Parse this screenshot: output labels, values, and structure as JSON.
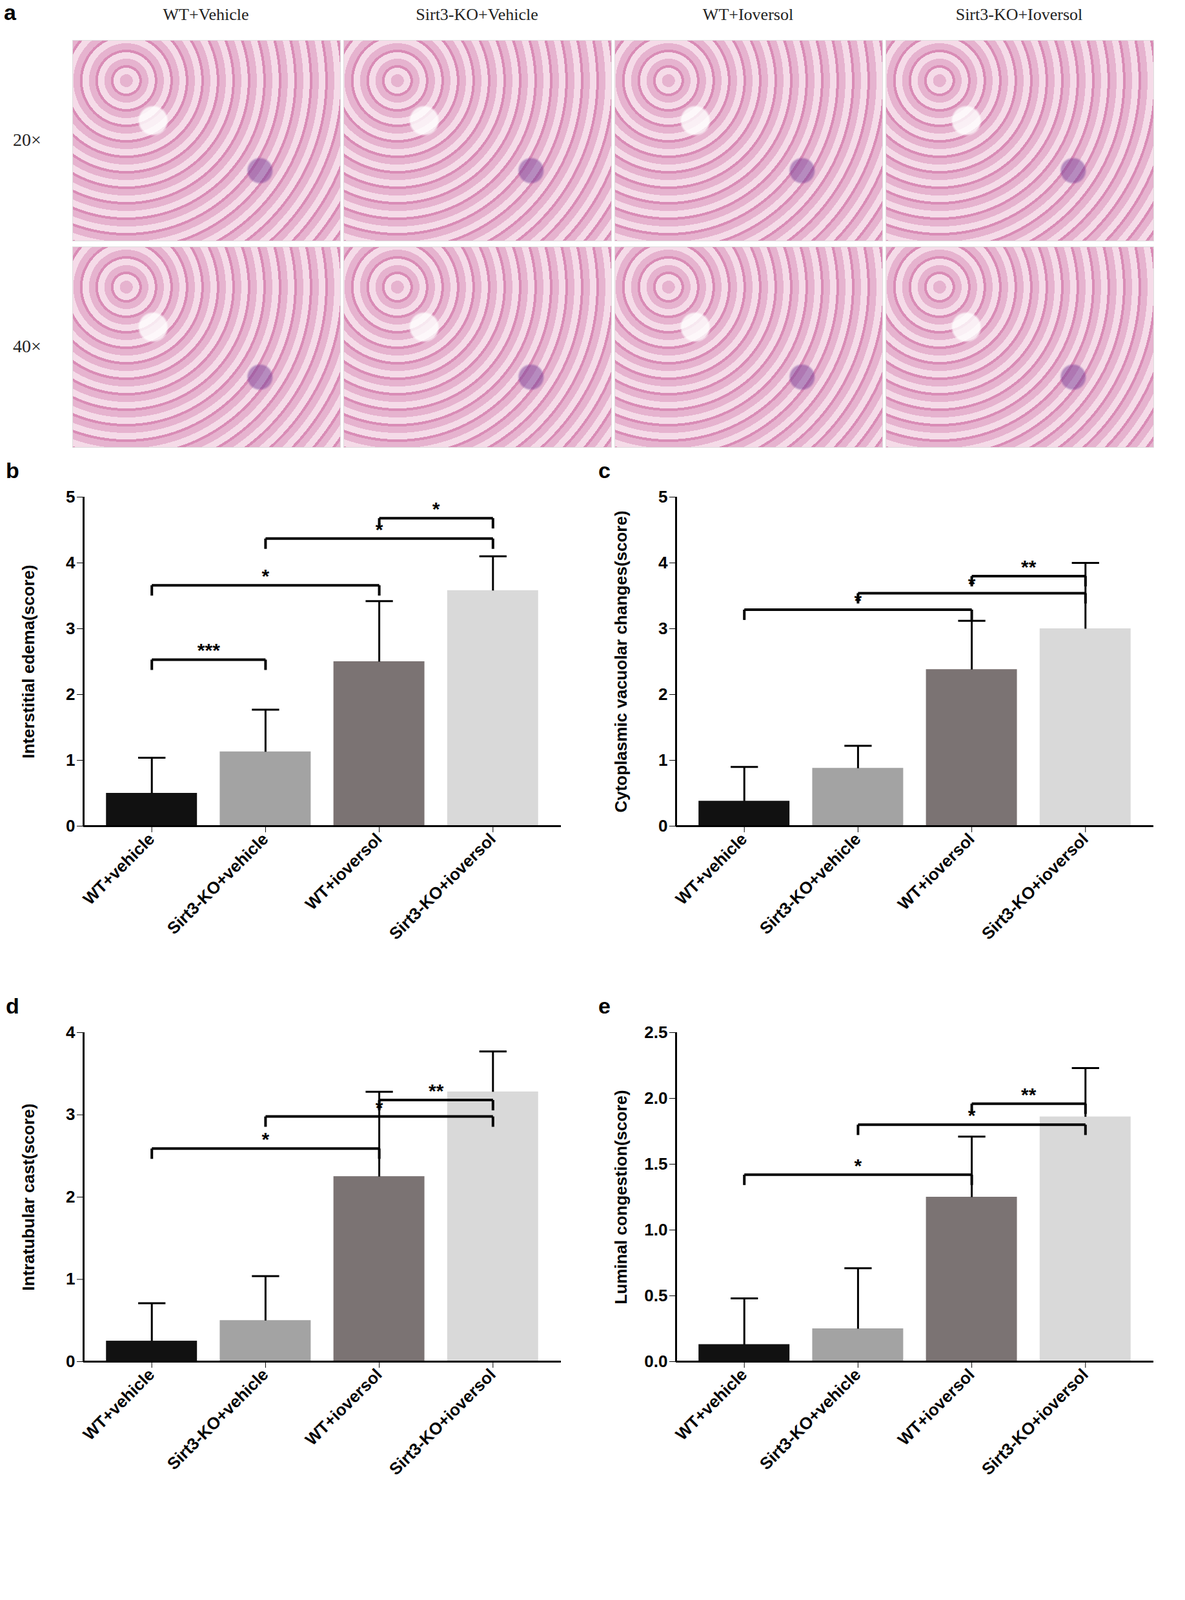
{
  "panel_a": {
    "label": "a",
    "columns": [
      "WT+Vehicle",
      "Sirt3-KO+Vehicle",
      "WT+Ioversol",
      "Sirt3-KO+Ioversol"
    ],
    "rows": [
      "20×",
      "40×"
    ]
  },
  "chart_data": [
    {
      "panel": "b",
      "type": "bar",
      "y_label": "Interstitial edema(score)",
      "categories": [
        "WT+vehicle",
        "Sirt3-KO+vehicle",
        "WT+ioversol",
        "Sirt3-KO+ioversol"
      ],
      "values": [
        0.5,
        1.13,
        2.5,
        3.58
      ],
      "errors": [
        0.54,
        0.64,
        0.92,
        0.52
      ],
      "colors": [
        "#111111",
        "#a3a3a3",
        "#7b7373",
        "#d9d9d9"
      ],
      "ylim": [
        0,
        5
      ],
      "yticks": [
        0,
        1,
        2,
        3,
        4,
        5
      ],
      "significance": [
        {
          "from": 0,
          "to": 1,
          "y": 2.53,
          "label": "***"
        },
        {
          "from": 0,
          "to": 2,
          "y": 3.66,
          "label": "*"
        },
        {
          "from": 1,
          "to": 3,
          "y": 4.37,
          "label": "*"
        },
        {
          "from": 2,
          "to": 3,
          "y": 4.68,
          "label": "*"
        }
      ]
    },
    {
      "panel": "c",
      "type": "bar",
      "y_label": "Cytoplasmic vacuolar changes(score)",
      "categories": [
        "WT+vehicle",
        "Sirt3-KO+vehicle",
        "WT+ioversol",
        "Sirt3-KO+ioversol"
      ],
      "values": [
        0.38,
        0.88,
        2.38,
        3.0
      ],
      "errors": [
        0.52,
        0.34,
        0.74,
        1.0
      ],
      "colors": [
        "#111111",
        "#a3a3a3",
        "#7b7373",
        "#d9d9d9"
      ],
      "ylim": [
        0,
        5
      ],
      "yticks": [
        0,
        1,
        2,
        3,
        4,
        5
      ],
      "significance": [
        {
          "from": 0,
          "to": 2,
          "y": 3.29,
          "label": "*"
        },
        {
          "from": 1,
          "to": 3,
          "y": 3.54,
          "label": "*"
        },
        {
          "from": 2,
          "to": 3,
          "y": 3.8,
          "label": "**"
        }
      ]
    },
    {
      "panel": "d",
      "type": "bar",
      "y_label": "Intratubular cast(score)",
      "categories": [
        "WT+vehicle",
        "Sirt3-KO+vehicle",
        "WT+ioversol",
        "Sirt3-KO+ioversol"
      ],
      "values": [
        0.25,
        0.5,
        2.25,
        3.28
      ],
      "errors": [
        0.46,
        0.54,
        1.03,
        0.49
      ],
      "colors": [
        "#111111",
        "#a3a3a3",
        "#7b7373",
        "#d9d9d9"
      ],
      "ylim": [
        0,
        4
      ],
      "yticks": [
        0,
        1,
        2,
        3,
        4
      ],
      "significance": [
        {
          "from": 0,
          "to": 2,
          "y": 2.59,
          "label": "*"
        },
        {
          "from": 1,
          "to": 3,
          "y": 2.98,
          "label": "*"
        },
        {
          "from": 2,
          "to": 3,
          "y": 3.18,
          "label": "**"
        }
      ]
    },
    {
      "panel": "e",
      "type": "bar",
      "y_label": "Luminal congestion(score)",
      "categories": [
        "WT+vehicle",
        "Sirt3-KO+vehicle",
        "WT+ioversol",
        "Sirt3-KO+ioversol"
      ],
      "values": [
        0.13,
        0.25,
        1.25,
        1.86
      ],
      "errors": [
        0.35,
        0.46,
        0.46,
        0.37
      ],
      "colors": [
        "#111111",
        "#a3a3a3",
        "#7b7373",
        "#d9d9d9"
      ],
      "ylim": [
        0,
        2.5
      ],
      "yticks": [
        {
          "value": 0,
          "label": "0.0"
        },
        0.5,
        {
          "value": 1,
          "label": "1.0"
        },
        1.5,
        {
          "value": 2,
          "label": "2.0"
        },
        2.5
      ],
      "significance": [
        {
          "from": 0,
          "to": 2,
          "y": 1.42,
          "label": "*"
        },
        {
          "from": 1,
          "to": 3,
          "y": 1.8,
          "label": "*"
        },
        {
          "from": 2,
          "to": 3,
          "y": 1.96,
          "label": "**"
        }
      ]
    }
  ]
}
